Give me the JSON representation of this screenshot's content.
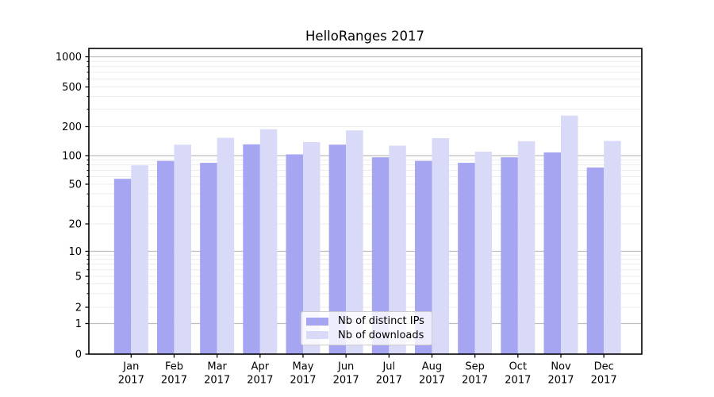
{
  "chart_data": {
    "type": "bar",
    "title": "HelloRanges 2017",
    "categories": [
      "Jan 2017",
      "Feb 2017",
      "Mar 2017",
      "Apr 2017",
      "May 2017",
      "Jun 2017",
      "Jul 2017",
      "Aug 2017",
      "Sep 2017",
      "Oct 2017",
      "Nov 2017",
      "Dec 2017"
    ],
    "series": [
      {
        "name": "Nb of distinct IPs",
        "color": "#a5a5f2",
        "values": [
          57,
          88,
          84,
          131,
          103,
          130,
          96,
          88,
          84,
          96,
          108,
          75
        ]
      },
      {
        "name": "Nb of downloads",
        "color": "#d9d9f8",
        "values": [
          79,
          130,
          153,
          188,
          138,
          183,
          127,
          152,
          110,
          141,
          258,
          142
        ]
      }
    ],
    "xlabel": "",
    "ylabel": "",
    "yscale": "symlog",
    "yticks": [
      0,
      1,
      2,
      5,
      10,
      20,
      50,
      100,
      200,
      500,
      1000
    ],
    "ylim": [
      0,
      1200
    ],
    "grid": true,
    "legend_position": "lower center"
  }
}
